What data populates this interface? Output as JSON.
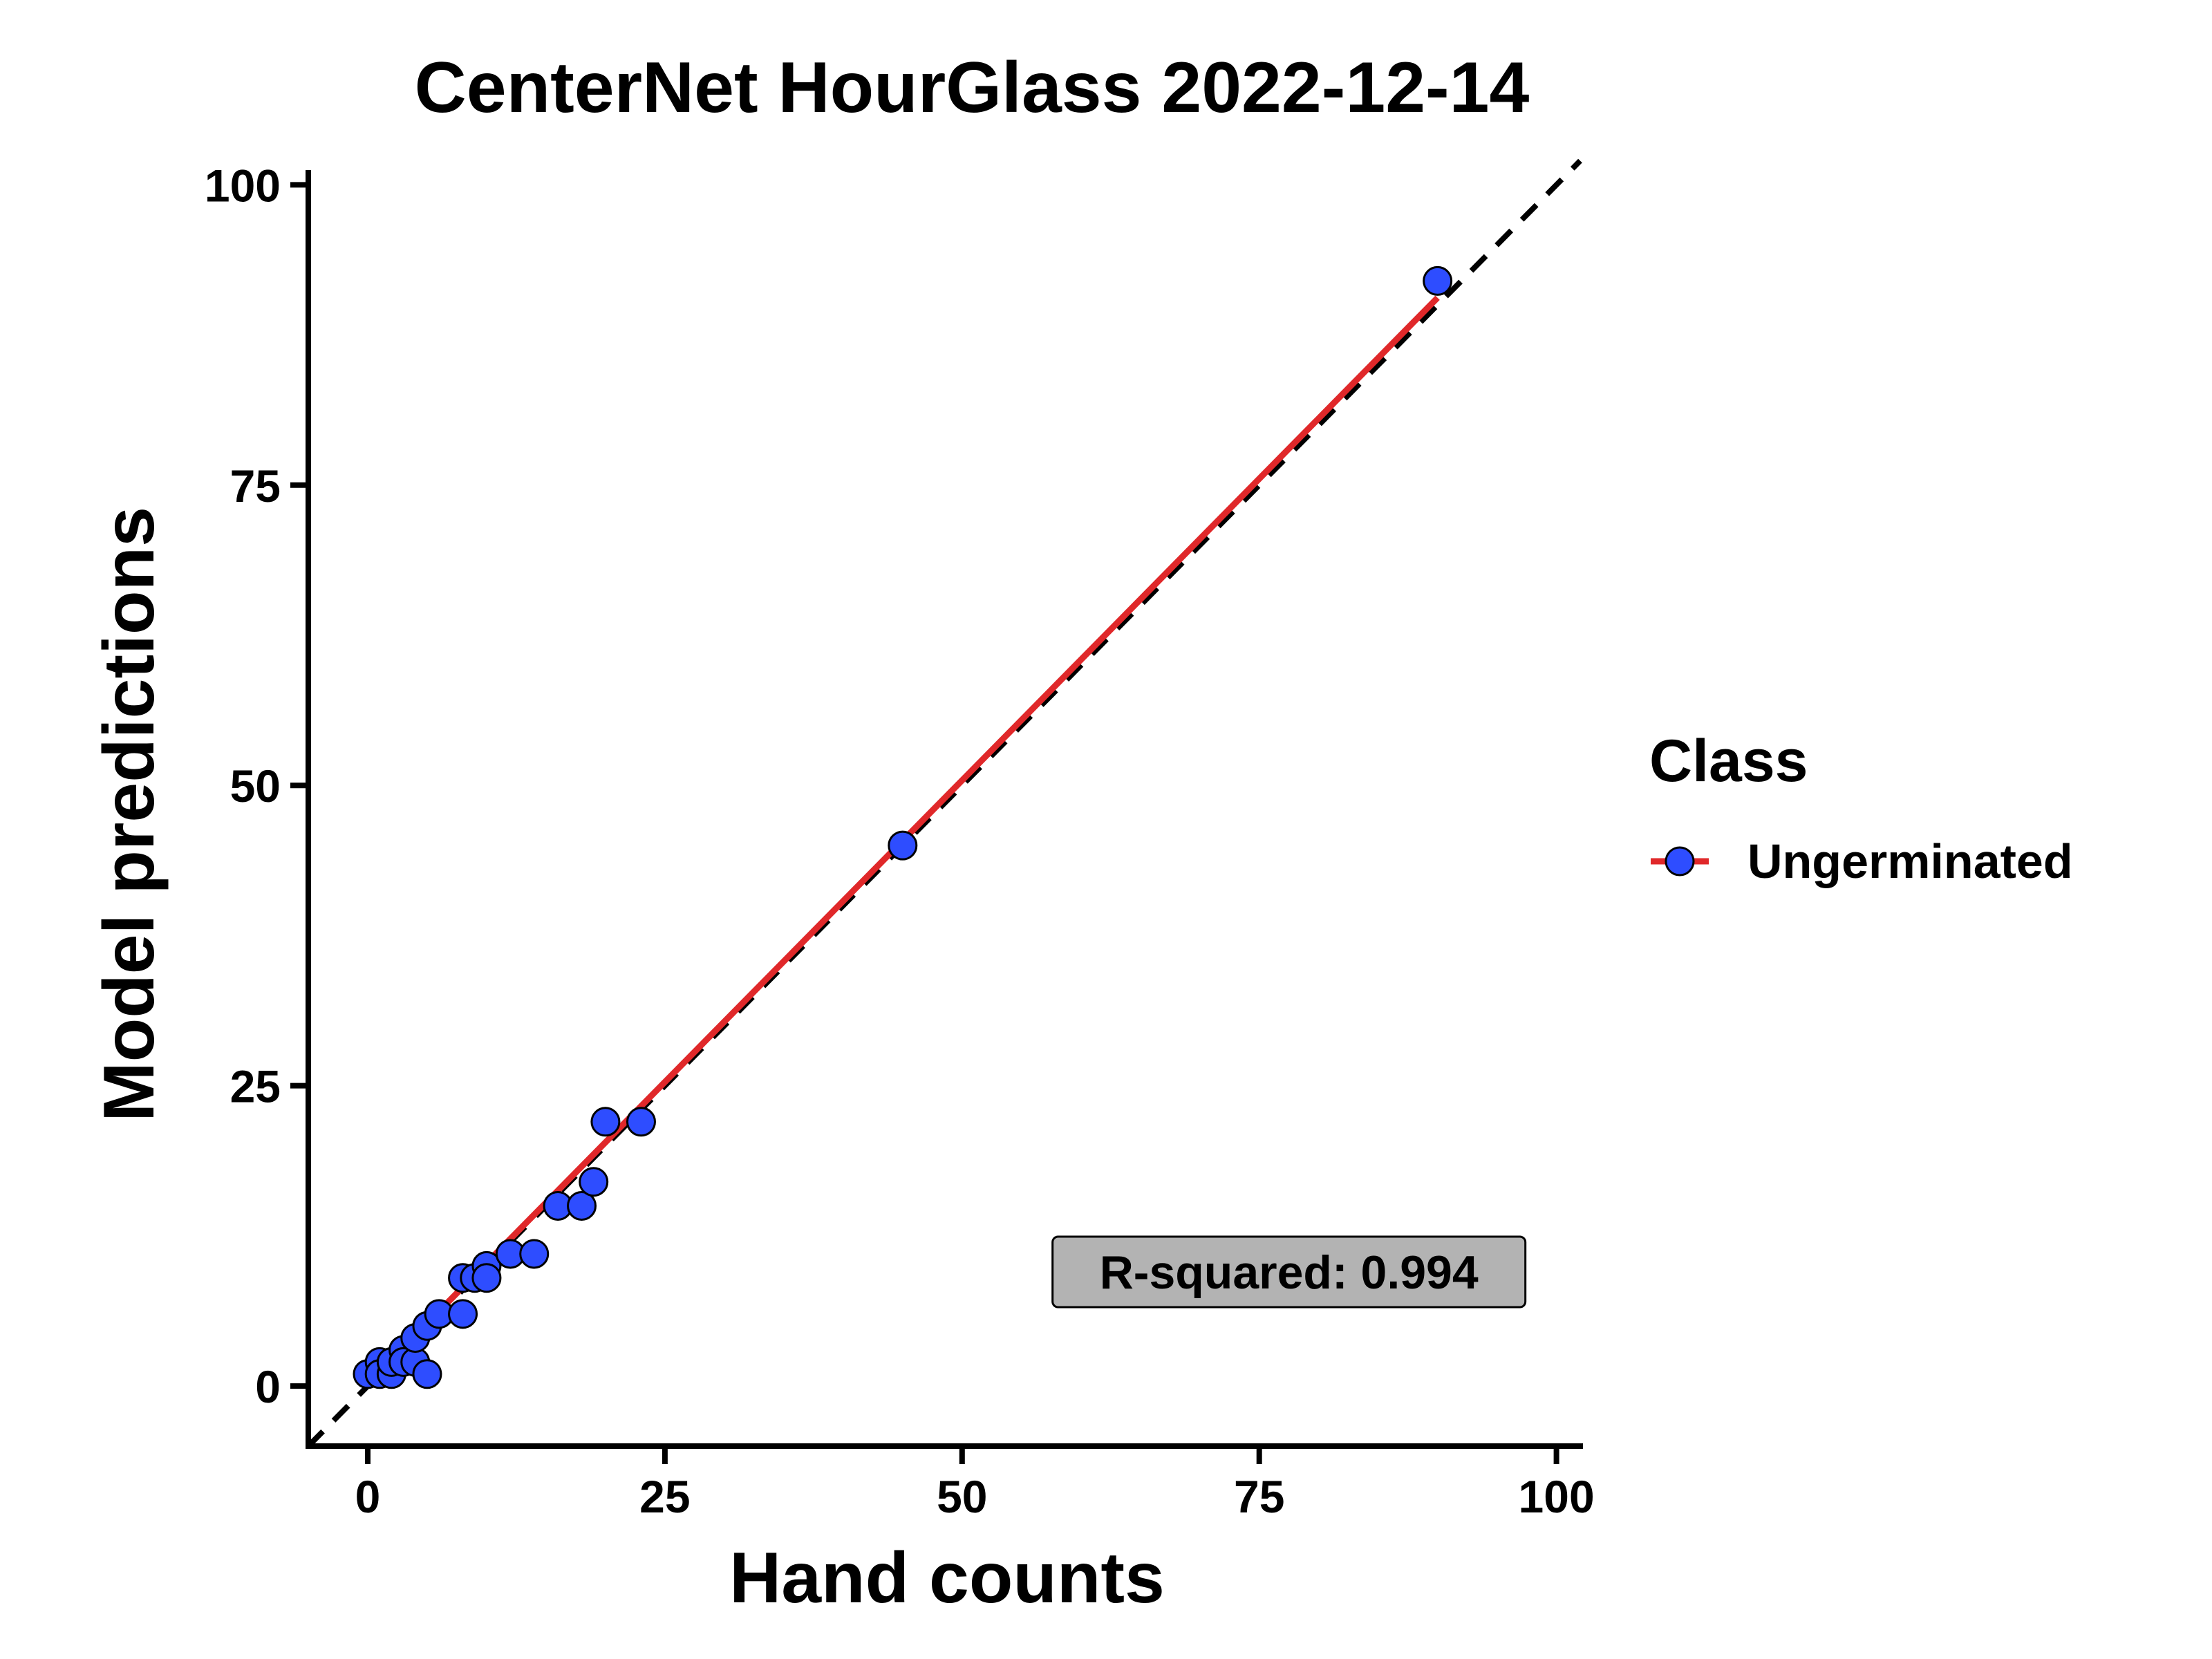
{
  "chart_data": {
    "type": "scatter",
    "title": "CenterNet HourGlass 2022-12-14",
    "xlabel": "Hand counts",
    "ylabel": "Model predictions",
    "xlim": [
      -5,
      102
    ],
    "ylim": [
      -5,
      101
    ],
    "xticks": [
      0,
      25,
      50,
      75,
      100
    ],
    "yticks": [
      0,
      25,
      50,
      75,
      100
    ],
    "grid": false,
    "legend": {
      "title": "Class",
      "position": "right",
      "entries": [
        {
          "label": "Ungerminated",
          "marker_color": "#2e4dff",
          "line_color": "#e0282a"
        }
      ]
    },
    "series": [
      {
        "name": "Ungerminated",
        "color": "#2e4dff",
        "points": [
          {
            "x": 0,
            "y": 1
          },
          {
            "x": 1,
            "y": 2
          },
          {
            "x": 1,
            "y": 1
          },
          {
            "x": 2,
            "y": 1
          },
          {
            "x": 2,
            "y": 2
          },
          {
            "x": 3,
            "y": 3
          },
          {
            "x": 3,
            "y": 2
          },
          {
            "x": 4,
            "y": 2
          },
          {
            "x": 4,
            "y": 4
          },
          {
            "x": 5,
            "y": 5
          },
          {
            "x": 5,
            "y": 1
          },
          {
            "x": 6,
            "y": 6
          },
          {
            "x": 8,
            "y": 6
          },
          {
            "x": 8,
            "y": 9
          },
          {
            "x": 9,
            "y": 9
          },
          {
            "x": 10,
            "y": 10
          },
          {
            "x": 10,
            "y": 9
          },
          {
            "x": 12,
            "y": 11
          },
          {
            "x": 14,
            "y": 11
          },
          {
            "x": 16,
            "y": 15
          },
          {
            "x": 18,
            "y": 15
          },
          {
            "x": 19,
            "y": 17
          },
          {
            "x": 20,
            "y": 22
          },
          {
            "x": 23,
            "y": 22
          },
          {
            "x": 45,
            "y": 45
          },
          {
            "x": 90,
            "y": 92
          }
        ]
      }
    ],
    "fit_line": {
      "color": "#e0282a",
      "x_start": 0,
      "y_start": 0.2,
      "x_end": 90,
      "y_end": 90.6
    },
    "identity_line": {
      "color": "#000000",
      "style": "dashed",
      "x_start": -5,
      "y_start": -5,
      "x_end": 102,
      "y_end": 102
    },
    "annotation": {
      "text": "R-squared: 0.994",
      "x": 77.5,
      "y": 9.5,
      "fill": "#b3b3b3"
    }
  }
}
